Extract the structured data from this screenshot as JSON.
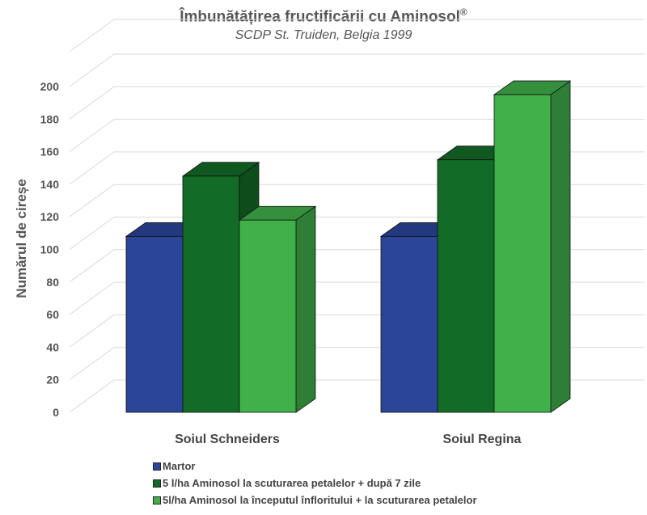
{
  "title": "Îmbunătățirea fructificării cu Aminosol",
  "title_mark": "®",
  "subtitle": "SCDP St. Truiden, Belgia 1999",
  "chart_data": {
    "type": "bar",
    "title": "Îmbunătățirea fructificării cu Aminosol®",
    "subtitle": "SCDP St. Truiden, Belgia 1999",
    "ylabel": "Numărul de cireșe",
    "xlabel": "",
    "ylim": [
      0,
      200
    ],
    "yticks": [
      0,
      20,
      40,
      60,
      80,
      100,
      120,
      140,
      160,
      180,
      200
    ],
    "categories": [
      "Soiul Schneiders",
      "Soiul Regina"
    ],
    "series": [
      {
        "name": "Martor",
        "values": [
          108,
          108
        ],
        "color": "#2B4699"
      },
      {
        "name": "5 l/ha Aminosol la scuturarea petalelor + după 7 zile",
        "values": [
          145,
          155
        ],
        "color": "#126B27"
      },
      {
        "name": "5l/ha Aminosol la începutul înfloritului + la scuturarea petalelor",
        "values": [
          118,
          195
        ],
        "color": "#40B04A"
      }
    ],
    "grid": true,
    "style": "3d-clustered-column",
    "legend": "bottom-left"
  }
}
